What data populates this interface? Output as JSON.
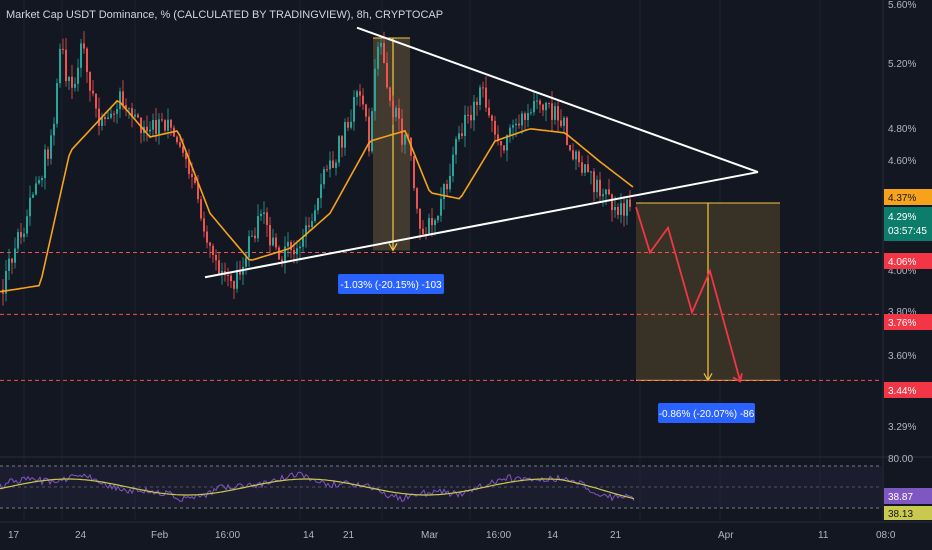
{
  "header": {
    "title": "Market Cap USDT Dominance, % (CALCULATED BY TRADINGVIEW), 8h, CRYPTOCAP"
  },
  "colors": {
    "background": "#131722",
    "up": "#26a69a",
    "down": "#ef5350",
    "ma": "#f7a21b",
    "rsi": "#7e57c2",
    "rsi_ma": "#c9c84f",
    "trendline": "#ffffff",
    "level_line": "#ef5350",
    "measure_box": "#4a3f2c",
    "measure_label": "#2962ff"
  },
  "price_axis": {
    "ticks": [
      "5.60%",
      "5.20%",
      "4.80%",
      "4.60%",
      "4.00%",
      "3.80%",
      "3.60%",
      "3.29%"
    ]
  },
  "time_axis": {
    "labels": [
      "17",
      "24",
      "Feb",
      "16:00",
      "14",
      "21",
      "Mar",
      "16:00",
      "14",
      "21",
      "Apr",
      "11",
      "08:0"
    ]
  },
  "price_labels": {
    "ma_value": "4.37%",
    "last_price": "4.29%",
    "countdown": "03:57:45",
    "level_1": "4.06%",
    "level_2": "3.76%",
    "level_3": "3.44%"
  },
  "measurements": {
    "past_move": "-1.03% (-20.15%) -103",
    "projected_move": "-0.86% (-20.07%) -86"
  },
  "rsi": {
    "ticks": [
      "80.00",
      "38.87",
      "38.13"
    ]
  },
  "chart_data": {
    "type": "candlestick",
    "symbol": "USDT.D",
    "unit": "%",
    "interval": "8h",
    "last_close": 4.29,
    "moving_average_last": 4.37,
    "horizontal_levels": [
      4.06,
      3.76,
      3.44
    ],
    "ylim": [
      3.2,
      5.65
    ],
    "close_path": [
      {
        "t": 0,
        "v": 3.88
      },
      {
        "t": 30,
        "v": 4.3
      },
      {
        "t": 50,
        "v": 4.6
      },
      {
        "t": 60,
        "v": 5.05
      },
      {
        "t": 72,
        "v": 4.8
      },
      {
        "t": 82,
        "v": 5.08
      },
      {
        "t": 96,
        "v": 4.7
      },
      {
        "t": 120,
        "v": 4.8
      },
      {
        "t": 145,
        "v": 4.65
      },
      {
        "t": 170,
        "v": 4.7
      },
      {
        "t": 195,
        "v": 4.35
      },
      {
        "t": 215,
        "v": 4.0
      },
      {
        "t": 235,
        "v": 3.92
      },
      {
        "t": 260,
        "v": 4.25
      },
      {
        "t": 275,
        "v": 4.05
      },
      {
        "t": 300,
        "v": 4.1
      },
      {
        "t": 320,
        "v": 4.4
      },
      {
        "t": 340,
        "v": 4.6
      },
      {
        "t": 358,
        "v": 4.85
      },
      {
        "t": 368,
        "v": 4.6
      },
      {
        "t": 378,
        "v": 5.12
      },
      {
        "t": 392,
        "v": 4.75
      },
      {
        "t": 408,
        "v": 4.55
      },
      {
        "t": 420,
        "v": 4.15
      },
      {
        "t": 440,
        "v": 4.3
      },
      {
        "t": 462,
        "v": 4.68
      },
      {
        "t": 482,
        "v": 4.84
      },
      {
        "t": 500,
        "v": 4.58
      },
      {
        "t": 520,
        "v": 4.72
      },
      {
        "t": 545,
        "v": 4.78
      },
      {
        "t": 560,
        "v": 4.7
      },
      {
        "t": 580,
        "v": 4.45
      },
      {
        "t": 600,
        "v": 4.38
      },
      {
        "t": 615,
        "v": 4.28
      },
      {
        "t": 630,
        "v": 4.3
      }
    ],
    "moving_average_path": [
      {
        "t": 0,
        "v": 3.87
      },
      {
        "t": 40,
        "v": 3.9
      },
      {
        "t": 70,
        "v": 4.55
      },
      {
        "t": 118,
        "v": 4.8
      },
      {
        "t": 150,
        "v": 4.62
      },
      {
        "t": 178,
        "v": 4.65
      },
      {
        "t": 210,
        "v": 4.25
      },
      {
        "t": 250,
        "v": 4.02
      },
      {
        "t": 290,
        "v": 4.08
      },
      {
        "t": 330,
        "v": 4.25
      },
      {
        "t": 370,
        "v": 4.6
      },
      {
        "t": 405,
        "v": 4.65
      },
      {
        "t": 430,
        "v": 4.35
      },
      {
        "t": 460,
        "v": 4.32
      },
      {
        "t": 495,
        "v": 4.6
      },
      {
        "t": 530,
        "v": 4.66
      },
      {
        "t": 565,
        "v": 4.64
      },
      {
        "t": 600,
        "v": 4.5
      },
      {
        "t": 635,
        "v": 4.37
      }
    ],
    "triangle": {
      "upper": [
        {
          "t": 357,
          "v": 5.15
        },
        {
          "t": 758,
          "v": 4.45
        }
      ],
      "lower": [
        {
          "t": 205,
          "v": 3.94
        },
        {
          "t": 758,
          "v": 4.45
        }
      ]
    },
    "measure_past": {
      "t_start": 373,
      "t_end": 410,
      "from": 5.1,
      "to": 4.07
    },
    "measure_projected": {
      "t_start": 636,
      "t_end": 780,
      "from": 4.3,
      "to": 3.44
    },
    "projected_path": [
      {
        "t": 636,
        "v": 4.28
      },
      {
        "t": 650,
        "v": 4.06
      },
      {
        "t": 668,
        "v": 4.18
      },
      {
        "t": 692,
        "v": 3.77
      },
      {
        "t": 710,
        "v": 3.97
      },
      {
        "t": 740,
        "v": 3.44
      }
    ],
    "rsi": {
      "upper_band": 80.0,
      "value": 38.87,
      "signal": 38.13
    }
  }
}
